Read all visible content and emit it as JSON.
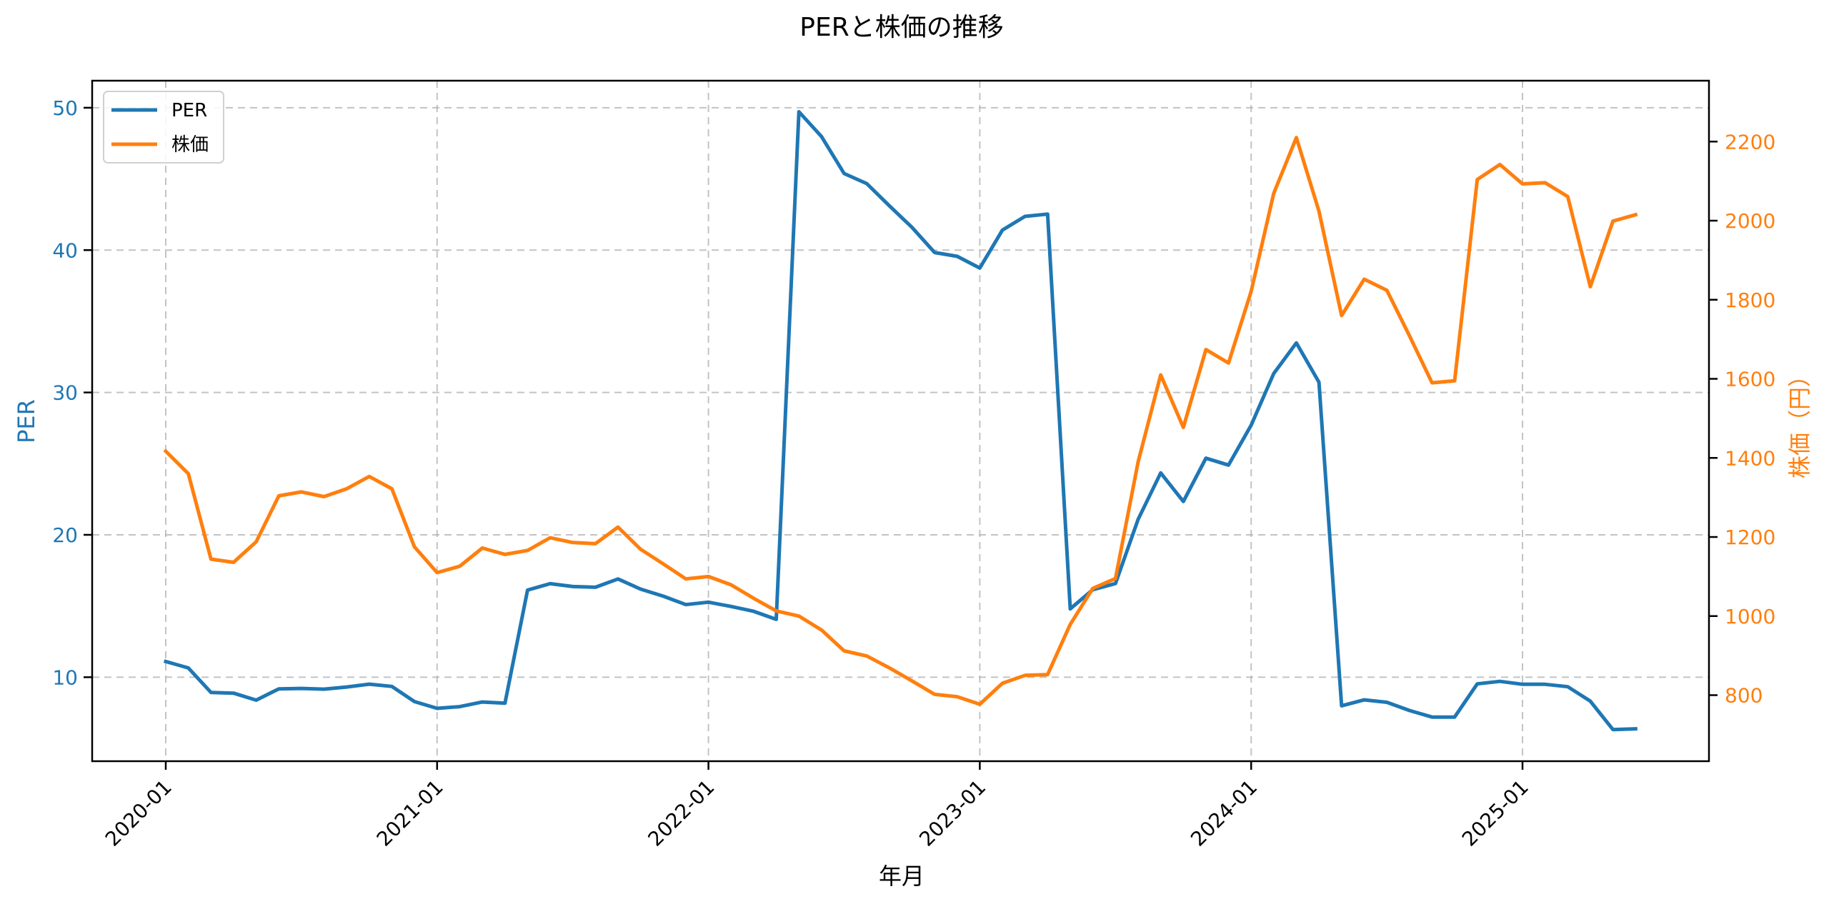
{
  "chart_data": {
    "type": "line",
    "title": "PERと株価の推移",
    "xlabel": "年月",
    "ylabel_left": "PER",
    "ylabel_right": "株価（円）",
    "x_tick_labels": [
      "2020-01",
      "2021-01",
      "2022-01",
      "2023-01",
      "2024-01",
      "2025-01"
    ],
    "ylim_left": [
      4.1,
      51.9
    ],
    "yticks_left": [
      10,
      20,
      30,
      40,
      50
    ],
    "ylim_right": [
      633,
      2354
    ],
    "yticks_right": [
      800,
      1000,
      1200,
      1400,
      1600,
      1800,
      2000,
      2200
    ],
    "grid": true,
    "legend_position": "upper left",
    "colors": {
      "PER": "#1f77b4",
      "株価": "#ff7f0e"
    },
    "x": [
      "2020-01",
      "2020-02",
      "2020-03",
      "2020-04",
      "2020-05",
      "2020-06",
      "2020-07",
      "2020-08",
      "2020-09",
      "2020-10",
      "2020-11",
      "2020-12",
      "2021-01",
      "2021-02",
      "2021-03",
      "2021-04",
      "2021-05",
      "2021-06",
      "2021-07",
      "2021-08",
      "2021-09",
      "2021-10",
      "2021-11",
      "2021-12",
      "2022-01",
      "2022-02",
      "2022-03",
      "2022-04",
      "2022-05",
      "2022-06",
      "2022-07",
      "2022-08",
      "2022-09",
      "2022-10",
      "2022-11",
      "2022-12",
      "2023-01",
      "2023-02",
      "2023-03",
      "2023-04",
      "2023-05",
      "2023-06",
      "2023-07",
      "2023-08",
      "2023-09",
      "2023-10",
      "2023-11",
      "2023-12",
      "2024-01",
      "2024-02",
      "2024-03",
      "2024-04",
      "2024-05",
      "2024-06",
      "2024-07",
      "2024-08",
      "2024-09",
      "2024-10",
      "2024-11",
      "2024-12",
      "2025-01",
      "2025-02",
      "2025-03",
      "2025-04",
      "2025-05",
      "2025-06"
    ],
    "series": [
      {
        "name": "PER",
        "axis": "left",
        "values": [
          11.1,
          10.65,
          8.93,
          8.88,
          8.39,
          9.18,
          9.21,
          9.16,
          9.31,
          9.51,
          9.35,
          8.29,
          7.81,
          7.93,
          8.26,
          8.18,
          16.12,
          16.57,
          16.37,
          16.32,
          16.9,
          16.19,
          15.69,
          15.1,
          15.27,
          14.97,
          14.63,
          14.06,
          49.72,
          47.98,
          45.38,
          44.67,
          43.11,
          41.6,
          39.83,
          39.56,
          38.74,
          41.4,
          42.37,
          42.53,
          14.8,
          16.15,
          16.58,
          21.09,
          24.35,
          22.34,
          25.38,
          24.9,
          27.7,
          31.33,
          33.48,
          30.72,
          7.99,
          8.41,
          8.24,
          7.66,
          7.2,
          7.2,
          9.53,
          9.71,
          9.5,
          9.5,
          9.33,
          8.32,
          6.32,
          6.37
        ]
      },
      {
        "name": "株価",
        "axis": "right",
        "values": [
          1417,
          1360,
          1144,
          1136,
          1188,
          1304,
          1314,
          1302,
          1322,
          1353,
          1322,
          1175,
          1110,
          1126,
          1172,
          1156,
          1166,
          1198,
          1186,
          1183,
          1225,
          1169,
          1132,
          1094,
          1100,
          1079,
          1045,
          1013,
          1000,
          965,
          912,
          899,
          869,
          836,
          802,
          796,
          777,
          830,
          850,
          852,
          979,
          1070,
          1095,
          1390,
          1610,
          1477,
          1674,
          1640,
          1821,
          2069,
          2210,
          2024,
          1760,
          1852,
          1824,
          1709,
          1590,
          1595,
          2104,
          2142,
          2093,
          2096,
          2061,
          1833,
          1999,
          2015
        ]
      }
    ]
  },
  "legend": {
    "items": [
      {
        "label": "PER",
        "color": "#1f77b4"
      },
      {
        "label": "株価",
        "color": "#ff7f0e"
      }
    ]
  }
}
